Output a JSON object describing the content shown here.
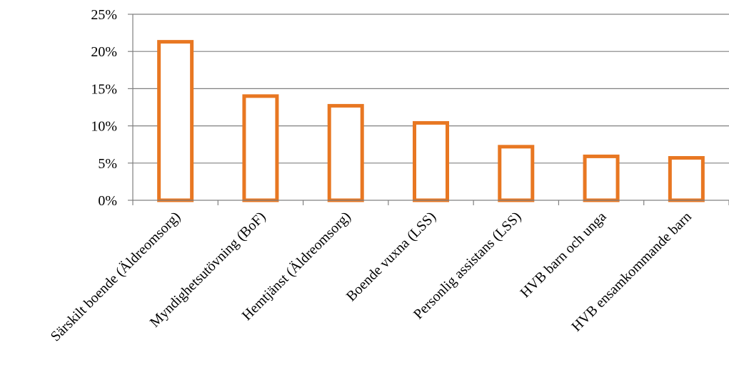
{
  "chart_data": {
    "type": "bar",
    "title": "",
    "xlabel": "",
    "ylabel": "",
    "categories": [
      "Särskilt boende (Äldreomsorg)",
      "Myndighetsutövning (BoF)",
      "Hemtjänst (Äldreomsorg)",
      "Boende vuxna (LSS)",
      "Personlig assistans (LSS)",
      "HVB barn och unga",
      "HVB ensamkommande barn"
    ],
    "values": [
      0.213,
      0.14,
      0.127,
      0.104,
      0.072,
      0.059,
      0.057
    ],
    "ylim": [
      0,
      0.25
    ],
    "y_ticks": [
      0,
      0.05,
      0.1,
      0.15,
      0.2,
      0.25
    ],
    "y_tick_labels": [
      "0%",
      "5%",
      "10%",
      "15%",
      "20%",
      "25%"
    ],
    "grid": true,
    "legend": "none",
    "colors": {
      "bar_stroke": "#E87722",
      "bar_fill": "#FFFFFF",
      "grid": "#808080",
      "axis": "#808080"
    }
  }
}
